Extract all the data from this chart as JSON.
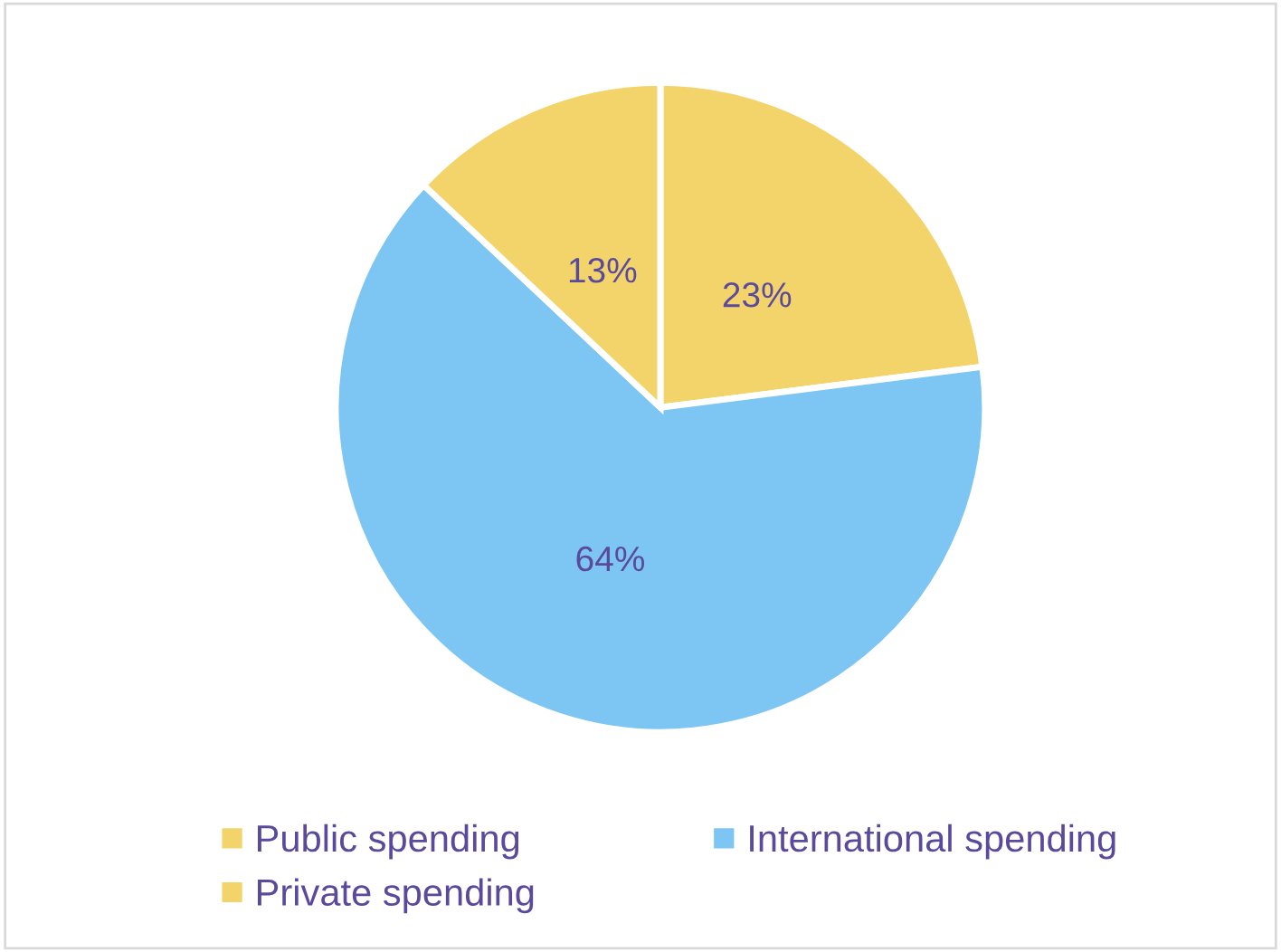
{
  "chart_data": {
    "type": "pie",
    "categories": [
      "Public spending",
      "International spending",
      "Private spending"
    ],
    "values": [
      23,
      64,
      13
    ],
    "colors": [
      "#f2d46b",
      "#7dc5f2",
      "#f2d46b"
    ],
    "value_labels": [
      "23%",
      "64%",
      "13%"
    ],
    "legend": "bottom"
  }
}
